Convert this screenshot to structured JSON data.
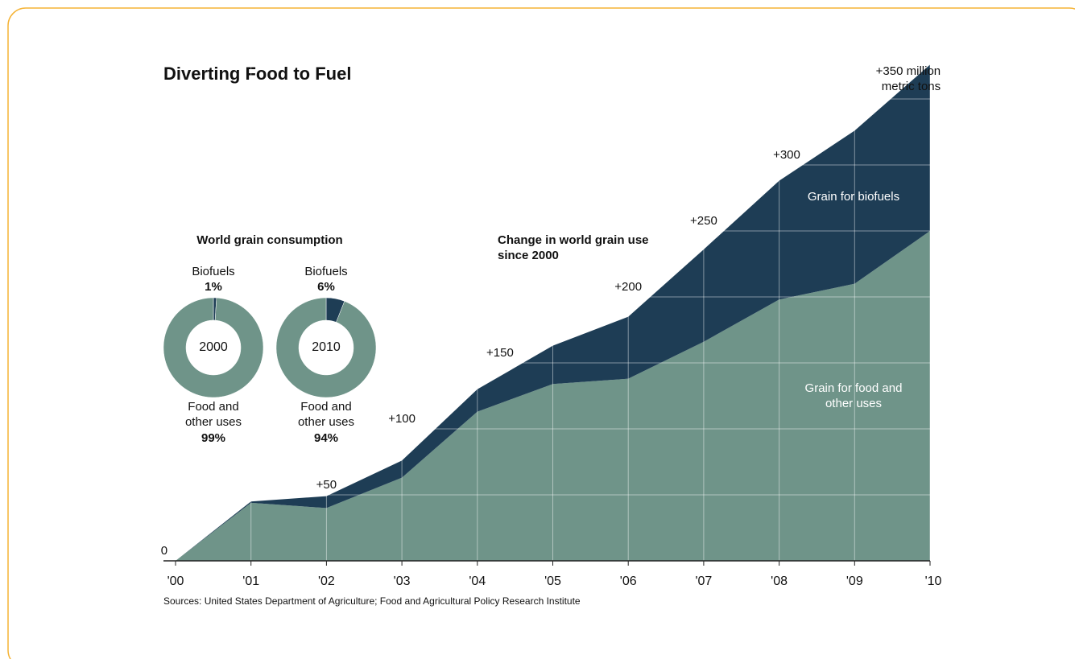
{
  "title": "Diverting Food to Fuel",
  "source": "Sources: United States Department of Agriculture; Food and Agricultural Policy Research Institute",
  "chart_data": [
    {
      "type": "area",
      "annotations": [
        "Change in world grain use since 2000"
      ],
      "categories": [
        "'00",
        "'01",
        "'02",
        "'03",
        "'04",
        "'05",
        "'06",
        "'07",
        "'08",
        "'09",
        "'10"
      ],
      "series": [
        {
          "name": "Grain for food and other uses",
          "color": "#6f9489",
          "values": [
            0,
            44,
            40,
            63,
            113,
            134,
            138,
            166,
            198,
            210,
            250
          ]
        },
        {
          "name": "Grain for biofuels",
          "color": "#1e3d55",
          "values": [
            0,
            1,
            9,
            13,
            17,
            29,
            47,
            70,
            90,
            116,
            126
          ]
        }
      ],
      "ylim": [
        0,
        350
      ],
      "yticks": [
        0,
        {
          "value": 50,
          "label": "+50"
        },
        {
          "value": 100,
          "label": "+100"
        },
        {
          "value": 150,
          "label": "+150"
        },
        {
          "value": 200,
          "label": "+200"
        },
        {
          "value": 250,
          "label": "+250"
        },
        {
          "value": 300,
          "label": "+300"
        },
        {
          "value": 350,
          "label": "+350 million metric tons"
        }
      ],
      "grid": true
    },
    {
      "type": "pie",
      "title": "World grain consumption",
      "label": "2000",
      "categories": [
        "Biofuels",
        "Food and other uses"
      ],
      "values": [
        1,
        99
      ],
      "value_labels": [
        "1%",
        "99%"
      ],
      "colors": [
        "#1e3d55",
        "#6f9489"
      ]
    },
    {
      "type": "pie",
      "label": "2010",
      "categories": [
        "Biofuels",
        "Food and other uses"
      ],
      "values": [
        6,
        94
      ],
      "value_labels": [
        "6%",
        "94%"
      ],
      "colors": [
        "#1e3d55",
        "#6f9489"
      ]
    }
  ]
}
